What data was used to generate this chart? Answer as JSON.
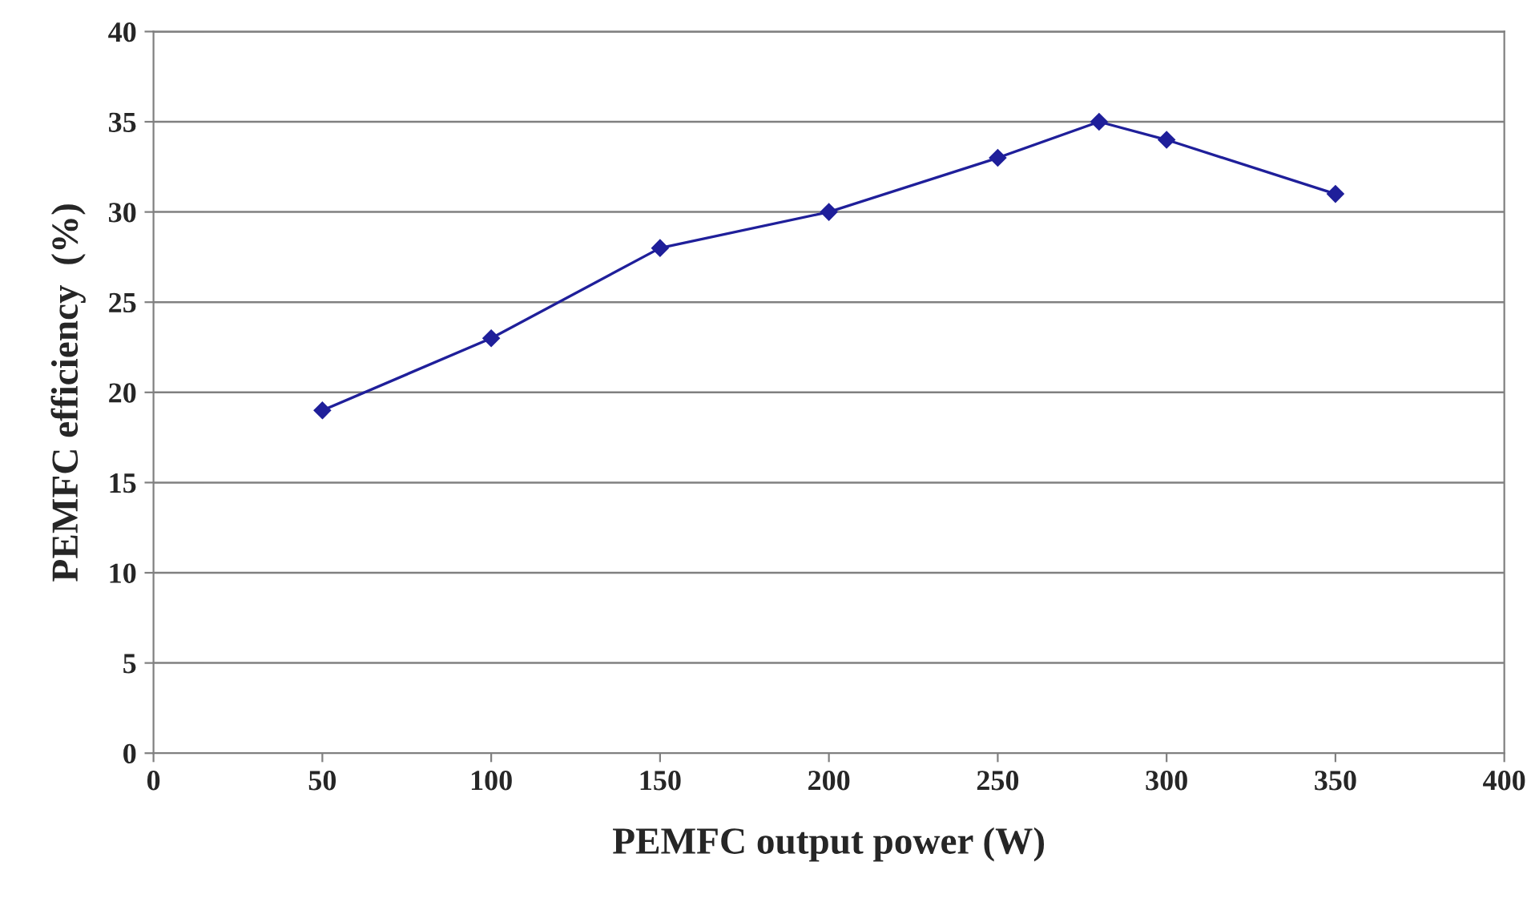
{
  "chart_data": {
    "type": "line",
    "xlabel": "PEMFC output power (W)",
    "ylabel": "PEMFC efficiency  (%)",
    "x": [
      50,
      100,
      150,
      200,
      250,
      280,
      300,
      350
    ],
    "series": [
      {
        "color": "#1f1f9a",
        "values": [
          19,
          23,
          28,
          30,
          33,
          35,
          34,
          31
        ]
      }
    ],
    "xlim": [
      0,
      400
    ],
    "xticks": [
      0,
      50,
      100,
      150,
      200,
      250,
      300,
      350,
      400
    ],
    "ylim": [
      0,
      40
    ],
    "yticks": [
      0,
      5,
      10,
      15,
      20,
      25,
      30,
      35,
      40
    ],
    "grid": "y",
    "marker": "diamond",
    "line_style": "solid"
  }
}
